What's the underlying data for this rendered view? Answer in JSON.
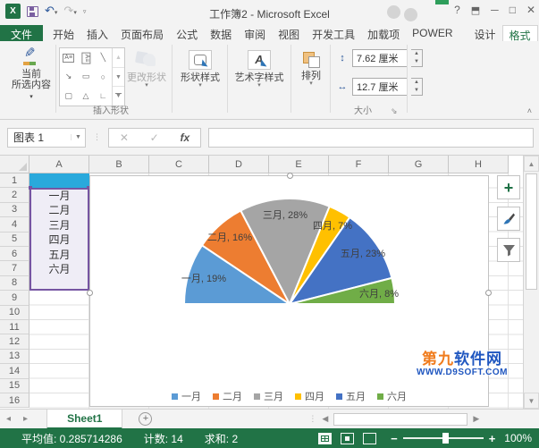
{
  "window": {
    "title": "工作簿2 - Microsoft Excel",
    "help": "?",
    "minimize": "─",
    "maximize": "□",
    "close": "✕"
  },
  "tabs": {
    "file": "文件",
    "items": [
      "开始",
      "插入",
      "页面布局",
      "公式",
      "数据",
      "审阅",
      "视图",
      "开发工具",
      "加载项",
      "POWER"
    ],
    "contextual": [
      "设计",
      "格式"
    ],
    "active": "格式"
  },
  "ribbon": {
    "current_selection_line1": "当前",
    "current_selection_line2": "所选内容",
    "insert_shapes_group": "插入形状",
    "change_shape": "更改形状",
    "shape_styles": "形状样式",
    "wordart_styles": "艺术字样式",
    "arrange": "排列",
    "size_group": "大小",
    "height_value": "7.62 厘米",
    "width_value": "12.7 厘米"
  },
  "formula_bar": {
    "name_box": "图表 1",
    "cancel": "✕",
    "enter": "✓",
    "fx": "fx",
    "formula_value": ""
  },
  "grid": {
    "col_headers": [
      "A",
      "B",
      "C",
      "D",
      "E",
      "F",
      "G",
      "H"
    ],
    "row_headers": [
      "1",
      "2",
      "3",
      "4",
      "5",
      "6",
      "7",
      "8",
      "9",
      "10",
      "11",
      "12",
      "13",
      "14",
      "15",
      "16"
    ],
    "a_column_cells": [
      "一月",
      "二月",
      "三月",
      "四月",
      "五月",
      "六月"
    ]
  },
  "chart_data": {
    "type": "pie",
    "variant": "half-pie",
    "categories": [
      "一月",
      "二月",
      "三月",
      "四月",
      "五月",
      "六月"
    ],
    "values": [
      19,
      16,
      28,
      7,
      23,
      8
    ],
    "labels": [
      "一月, 19%",
      "二月, 16%",
      "三月, 28%",
      "四月, 7%",
      "五月, 23%",
      "六月, 8%"
    ],
    "colors": [
      "#5B9BD5",
      "#ED7D31",
      "#A5A5A5",
      "#FFC000",
      "#4472C4",
      "#70AD47"
    ],
    "legend_position": "bottom",
    "title": ""
  },
  "chart_buttons": {
    "elements": "+",
    "styles": "brush",
    "filters": "funnel"
  },
  "watermark": {
    "part_orange": "第九",
    "part_blue": "软件网",
    "line2": "WWW.D9SOFT.COM"
  },
  "sheet_bar": {
    "tab": "Sheet1",
    "add": "+"
  },
  "status_bar": {
    "average": "平均值: 0.285714286",
    "count": "计数: 14",
    "sum": "求和: 2",
    "zoom": "100%"
  }
}
